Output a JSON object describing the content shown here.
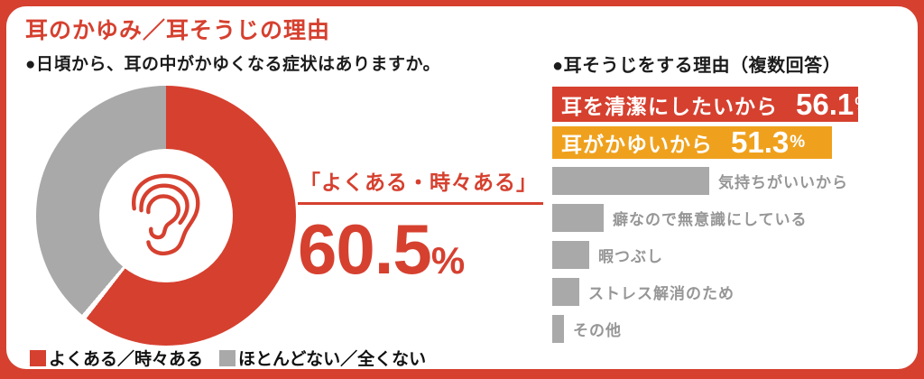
{
  "colors": {
    "accent_red": "#d6402f",
    "accent_orange": "#efa11d",
    "gray": "#a9a9a9",
    "gray_label": "#969696",
    "text_black": "#1c1c1c"
  },
  "title": "耳のかゆみ／耳そうじの理由",
  "donut_section": {
    "question": "●日頃から、耳の中がかゆくなる症状はありますか。",
    "annotation": "「よくある・時々ある」",
    "big_value": "60.5",
    "big_unit": "%",
    "center_icon": "ear-icon",
    "legend": [
      {
        "label": "よくある／時々ある",
        "color": "#d6402f"
      },
      {
        "label": "ほとんどない／全くない",
        "color": "#a9a9a9"
      }
    ]
  },
  "bar_section": {
    "heading": "●耳そうじをする理由（複数回答）",
    "percent_sign": "%"
  },
  "chart_data": [
    {
      "type": "pie",
      "title": "日頃から、耳の中がかゆくなる症状はありますか。",
      "categories": [
        "よくある／時々ある",
        "ほとんどない／全くない"
      ],
      "values": [
        60.5,
        39.5
      ],
      "colors": [
        "#d6402f",
        "#a9a9a9"
      ],
      "donut": true,
      "start_angle_deg": 0,
      "annotation": "「よくある・時々ある」 60.5%",
      "legend_position": "bottom"
    },
    {
      "type": "bar",
      "orientation": "horizontal",
      "title": "耳そうじをする理由（複数回答）",
      "categories": [
        "耳を清潔にしたいから",
        "耳がかゆいから",
        "気持ちがいいから",
        "癖なので無意識にしている",
        "暇つぶし",
        "ストレス解消のため",
        "その他"
      ],
      "values": [
        56.1,
        51.3,
        28.8,
        9.4,
        6.8,
        5.0,
        2.2
      ],
      "labeled_values": [
        "56.1",
        "51.3",
        null,
        null,
        null,
        null,
        null
      ],
      "values_estimated": [
        false,
        false,
        true,
        true,
        true,
        true,
        true
      ],
      "colors": [
        "#d6402f",
        "#efa11d",
        "#a9a9a9",
        "#a9a9a9",
        "#a9a9a9",
        "#a9a9a9",
        "#a9a9a9"
      ],
      "xlim": [
        0,
        60
      ]
    }
  ]
}
